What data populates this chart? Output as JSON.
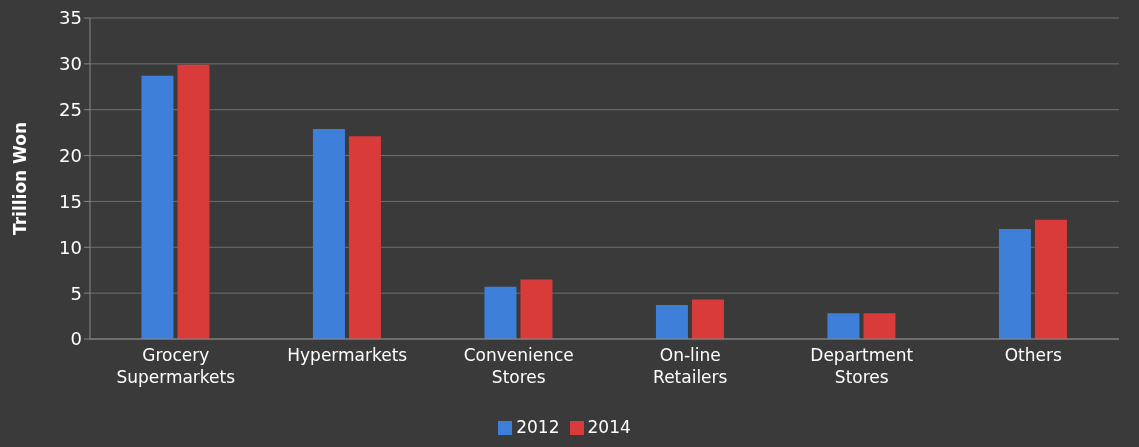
{
  "chart_data": {
    "type": "bar",
    "ylabel": "Trillion Won",
    "categories": [
      "Grocery Supermarkets",
      "Hypermarkets",
      "Convenience Stores",
      "On-line Retailers",
      "Department Stores",
      "Others"
    ],
    "series": [
      {
        "name": "2012",
        "color": "#3d7fd9",
        "values": [
          28.7,
          22.9,
          5.7,
          3.7,
          2.8,
          12.0
        ]
      },
      {
        "name": "2014",
        "color": "#d93a3a",
        "values": [
          29.9,
          22.1,
          6.5,
          4.3,
          2.8,
          13.0
        ]
      }
    ],
    "ylim": [
      0,
      35
    ],
    "yticks": [
      0,
      5,
      10,
      15,
      20,
      25,
      30,
      35
    ],
    "grid": "y",
    "legend": "bottom"
  }
}
